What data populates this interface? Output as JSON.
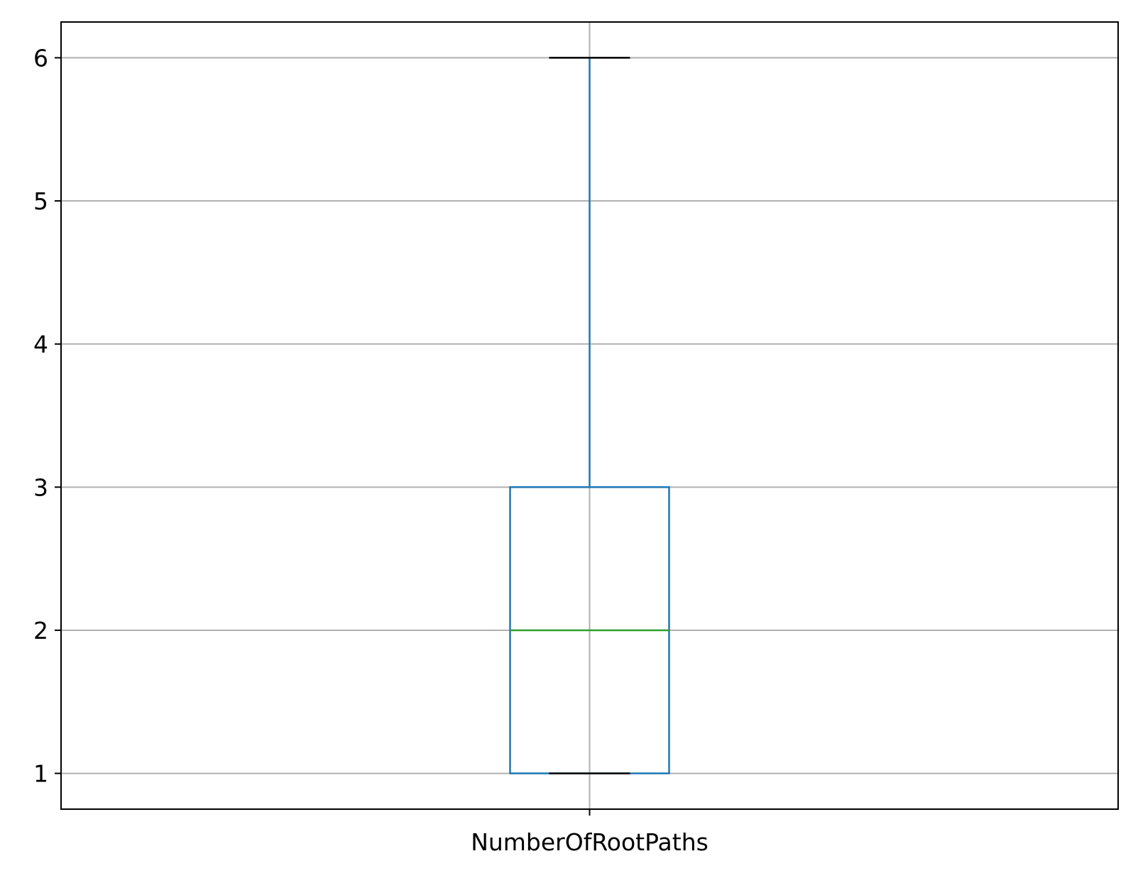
{
  "chart_data": {
    "type": "box",
    "title": "",
    "xlabel": "",
    "ylabel": "",
    "categories": [
      "NumberOfRootPaths"
    ],
    "boxes": [
      {
        "category": "NumberOfRootPaths",
        "whisker_low": 1,
        "q1": 1,
        "median": 2,
        "q3": 3,
        "whisker_high": 6
      }
    ],
    "y_ticks": [
      1,
      2,
      3,
      4,
      5,
      6
    ],
    "ylim": [
      0.75,
      6.25
    ],
    "grid": true,
    "colors": {
      "box": "#1f77b4",
      "whisker": "#1f77b4",
      "cap": "#000000",
      "median": "#2ca02c",
      "grid": "#b0b0b0"
    }
  }
}
